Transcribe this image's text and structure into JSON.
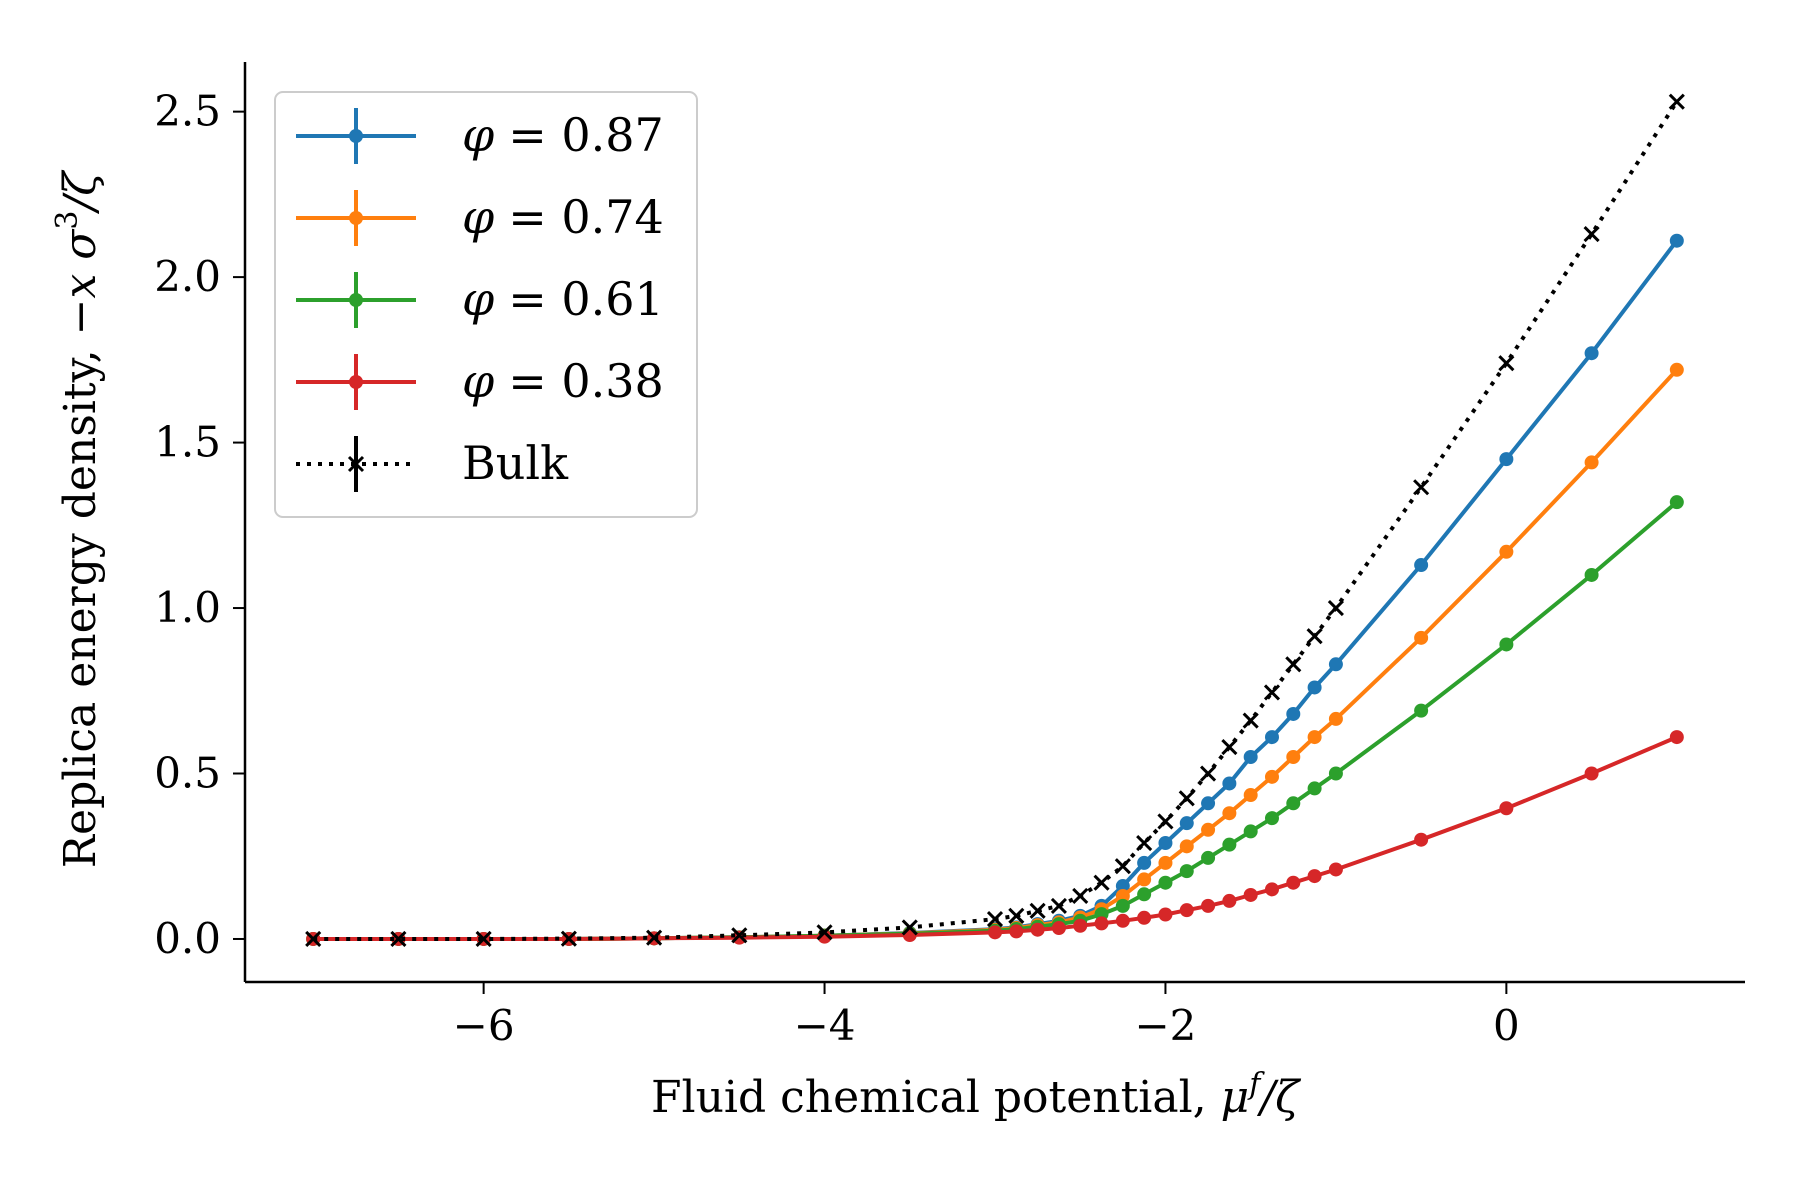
{
  "chart_data": {
    "type": "line",
    "title": "",
    "xlabel": "Fluid chemical potential, μ^f/ζ",
    "xlabel_parts": {
      "prefix": "Fluid chemical potential, ",
      "mu": "μ",
      "sup": "f",
      "rest": "/ζ"
    },
    "ylabel": "Replica energy density, −x σ^3/ζ",
    "ylabel_parts": {
      "prefix": "Replica energy density, ",
      "neg": "−",
      "x": "x",
      "sigma": "σ",
      "sup": "3",
      "rest": "/ζ"
    },
    "xlim": [
      -7.4,
      1.4
    ],
    "ylim": [
      -0.13,
      2.65
    ],
    "xticks": [
      -6,
      -4,
      -2,
      0
    ],
    "xtick_labels": [
      "−6",
      "−4",
      "−2",
      "0"
    ],
    "yticks": [
      0.0,
      0.5,
      1.0,
      1.5,
      2.0,
      2.5
    ],
    "ytick_labels": [
      "0.0",
      "0.5",
      "1.0",
      "1.5",
      "2.0",
      "2.5"
    ],
    "grid": false,
    "legend_position": "top-left",
    "series": [
      {
        "name": "φ = 0.87",
        "phi_symbol": "φ",
        "phi_value": "= 0.87",
        "color": "#1f77b4",
        "style": "solid",
        "marker": "dot",
        "x": [
          -7,
          -6.5,
          -6,
          -5.5,
          -5,
          -4.5,
          -4,
          -3.5,
          -3,
          -2.875,
          -2.75,
          -2.625,
          -2.5,
          -2.375,
          -2.25,
          -2.125,
          -2,
          -1.875,
          -1.75,
          -1.625,
          -1.5,
          -1.375,
          -1.25,
          -1.125,
          -1,
          -0.5,
          0,
          0.5,
          1
        ],
        "y": [
          0,
          0,
          0,
          0,
          0.002,
          0.005,
          0.01,
          0.018,
          0.03,
          0.035,
          0.045,
          0.055,
          0.07,
          0.1,
          0.16,
          0.23,
          0.29,
          0.35,
          0.41,
          0.47,
          0.55,
          0.61,
          0.68,
          0.76,
          0.83,
          1.13,
          1.45,
          1.77,
          2.11
        ]
      },
      {
        "name": "φ = 0.74",
        "phi_symbol": "φ",
        "phi_value": "= 0.74",
        "color": "#ff7f0e",
        "style": "solid",
        "marker": "dot",
        "x": [
          -7,
          -6.5,
          -6,
          -5.5,
          -5,
          -4.5,
          -4,
          -3.5,
          -3,
          -2.875,
          -2.75,
          -2.625,
          -2.5,
          -2.375,
          -2.25,
          -2.125,
          -2,
          -1.875,
          -1.75,
          -1.625,
          -1.5,
          -1.375,
          -1.25,
          -1.125,
          -1,
          -0.5,
          0,
          0.5,
          1
        ],
        "y": [
          0,
          0,
          0,
          0,
          0.002,
          0.005,
          0.01,
          0.017,
          0.028,
          0.033,
          0.042,
          0.05,
          0.065,
          0.09,
          0.13,
          0.18,
          0.23,
          0.28,
          0.33,
          0.38,
          0.435,
          0.49,
          0.55,
          0.61,
          0.665,
          0.91,
          1.17,
          1.44,
          1.72
        ]
      },
      {
        "name": "φ = 0.61",
        "phi_symbol": "φ",
        "phi_value": "= 0.61",
        "color": "#2ca02c",
        "style": "solid",
        "marker": "dot",
        "x": [
          -7,
          -6.5,
          -6,
          -5.5,
          -5,
          -4.5,
          -4,
          -3.5,
          -3,
          -2.875,
          -2.75,
          -2.625,
          -2.5,
          -2.375,
          -2.25,
          -2.125,
          -2,
          -1.875,
          -1.75,
          -1.625,
          -1.5,
          -1.375,
          -1.25,
          -1.125,
          -1,
          -0.5,
          0,
          0.5,
          1
        ],
        "y": [
          0,
          0,
          0,
          0,
          0.002,
          0.005,
          0.01,
          0.016,
          0.025,
          0.03,
          0.037,
          0.045,
          0.055,
          0.075,
          0.1,
          0.135,
          0.17,
          0.205,
          0.245,
          0.285,
          0.325,
          0.365,
          0.41,
          0.455,
          0.5,
          0.69,
          0.89,
          1.1,
          1.32
        ]
      },
      {
        "name": "φ = 0.38",
        "phi_symbol": "φ",
        "phi_value": "= 0.38",
        "color": "#d62728",
        "style": "solid",
        "marker": "dot",
        "x": [
          -7,
          -6.5,
          -6,
          -5.5,
          -5,
          -4.5,
          -4,
          -3.5,
          -3,
          -2.875,
          -2.75,
          -2.625,
          -2.5,
          -2.375,
          -2.25,
          -2.125,
          -2,
          -1.875,
          -1.75,
          -1.625,
          -1.5,
          -1.375,
          -1.25,
          -1.125,
          -1,
          -0.5,
          0,
          0.5,
          1
        ],
        "y": [
          0,
          0,
          0,
          0,
          0.002,
          0.004,
          0.007,
          0.012,
          0.02,
          0.023,
          0.028,
          0.033,
          0.04,
          0.047,
          0.055,
          0.064,
          0.074,
          0.087,
          0.1,
          0.115,
          0.133,
          0.15,
          0.17,
          0.19,
          0.21,
          0.3,
          0.395,
          0.5,
          0.61
        ]
      },
      {
        "name": "Bulk",
        "label": "Bulk",
        "color": "#000000",
        "style": "dotted",
        "marker": "x",
        "x": [
          -7,
          -6.5,
          -6,
          -5.5,
          -5,
          -4.5,
          -4,
          -3.5,
          -3,
          -2.875,
          -2.75,
          -2.625,
          -2.5,
          -2.375,
          -2.25,
          -2.125,
          -2,
          -1.875,
          -1.75,
          -1.625,
          -1.5,
          -1.375,
          -1.25,
          -1.125,
          -1,
          -0.5,
          0,
          0.5,
          1
        ],
        "y": [
          0,
          0,
          0,
          0.001,
          0.004,
          0.011,
          0.02,
          0.035,
          0.06,
          0.07,
          0.085,
          0.1,
          0.13,
          0.17,
          0.22,
          0.29,
          0.355,
          0.425,
          0.5,
          0.58,
          0.66,
          0.745,
          0.83,
          0.915,
          1.0,
          1.365,
          1.74,
          2.13,
          2.53
        ]
      }
    ]
  }
}
